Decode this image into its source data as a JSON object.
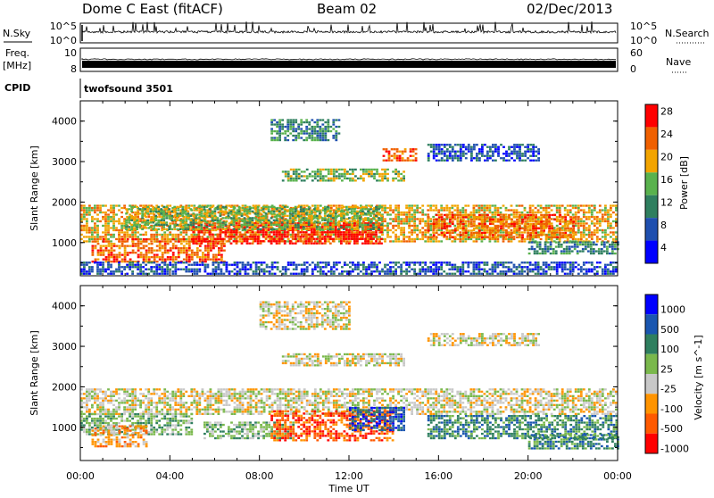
{
  "header": {
    "station": "Dome C East (fitACF)",
    "beam": "Beam 02",
    "date": "02/Dec/2013"
  },
  "strips": {
    "nsky_label": "N.Sky",
    "nsky_ticks": [
      "10^5",
      "10^0"
    ],
    "nsearch_label": "N.Search",
    "nsearch_ticks": [
      "10^5",
      "10^0"
    ],
    "freq_label_line1": "Freq.",
    "freq_label_line2": "[MHz]",
    "freq_ticks": [
      "10",
      "8"
    ],
    "nave_label": "Nave",
    "nave_ticks": [
      "60",
      "0"
    ],
    "cpid_label": "CPID",
    "cpid_value": "twofsound 3501"
  },
  "colors": {
    "power": [
      "#0000ff",
      "#1f4faf",
      "#2f7f5f",
      "#59b24d",
      "#f2a400",
      "#f06000",
      "#ff0000"
    ],
    "velocity": [
      "#ff0000",
      "#ff5a00",
      "#ff9400",
      "#c8c8c8",
      "#7ab84c",
      "#2f7f5f",
      "#1a56b0",
      "#0000ff"
    ]
  },
  "chart_data": [
    {
      "type": "heatmap",
      "name": "power",
      "title": "",
      "xlabel": "",
      "ylabel": "Slant Range [km]",
      "x_range_hours": [
        0,
        24
      ],
      "ylim": [
        180,
        4500
      ],
      "y_ticks": [
        1000,
        2000,
        3000,
        4000
      ],
      "x_tick_labels": [
        "00:00",
        "04:00",
        "08:00",
        "12:00",
        "16:00",
        "20:00",
        "00:00"
      ],
      "colorbar_label": "Power [dB]",
      "colorbar_ticks": [
        "4",
        "8",
        "12",
        "16",
        "20",
        "24",
        "28"
      ],
      "bands": [
        {
          "t": [
            0.0,
            24.0
          ],
          "r": [
            1000,
            1900
          ],
          "level": 4
        },
        {
          "t": [
            0.5,
            6.5
          ],
          "r": [
            500,
            1100
          ],
          "level": 5
        },
        {
          "t": [
            5.0,
            13.5
          ],
          "r": [
            950,
            1500
          ],
          "level": 6
        },
        {
          "t": [
            15.5,
            22.0
          ],
          "r": [
            1100,
            1700
          ],
          "level": 5
        },
        {
          "t": [
            2.0,
            13.5
          ],
          "r": [
            1300,
            1900
          ],
          "level": 3
        },
        {
          "t": [
            0.0,
            24.0
          ],
          "r": [
            200,
            500
          ],
          "level": 1
        },
        {
          "t": [
            9.0,
            14.5
          ],
          "r": [
            2500,
            2800
          ],
          "level": 3
        },
        {
          "t": [
            13.5,
            15.0
          ],
          "r": [
            3000,
            3300
          ],
          "level": 5
        },
        {
          "t": [
            8.5,
            11.5
          ],
          "r": [
            3500,
            4000
          ],
          "level": 2
        },
        {
          "t": [
            15.5,
            20.5
          ],
          "r": [
            3000,
            3400
          ],
          "level": 1
        },
        {
          "t": [
            20.0,
            24.0
          ],
          "r": [
            700,
            1000
          ],
          "level": 2
        }
      ]
    },
    {
      "type": "heatmap",
      "name": "velocity",
      "title": "",
      "xlabel": "Time UT",
      "ylabel": "Slant Range [km]",
      "x_range_hours": [
        0,
        24
      ],
      "ylim": [
        180,
        4500
      ],
      "y_ticks": [
        1000,
        2000,
        3000,
        4000
      ],
      "x_tick_labels": [
        "00:00",
        "04:00",
        "08:00",
        "12:00",
        "16:00",
        "20:00",
        "00:00"
      ],
      "colorbar_label": "Velocity [m s^-1]",
      "colorbar_ticks": [
        "1000",
        "500",
        "100",
        "25",
        "-25",
        "-100",
        "-500",
        "-1000"
      ],
      "bands": [
        {
          "t": [
            0.0,
            24.0
          ],
          "r": [
            1300,
            1950
          ],
          "level": 3
        },
        {
          "t": [
            0.0,
            5.0
          ],
          "r": [
            800,
            1350
          ],
          "level": 4
        },
        {
          "t": [
            0.5,
            3.0
          ],
          "r": [
            500,
            1000
          ],
          "level": 2
        },
        {
          "t": [
            5.5,
            9.5
          ],
          "r": [
            700,
            1100
          ],
          "level": 4
        },
        {
          "t": [
            8.5,
            14.0
          ],
          "r": [
            650,
            1400
          ],
          "level": 1
        },
        {
          "t": [
            12.0,
            14.5
          ],
          "r": [
            900,
            1500
          ],
          "level": 6
        },
        {
          "t": [
            15.5,
            24.0
          ],
          "r": [
            700,
            1300
          ],
          "level": 5
        },
        {
          "t": [
            20.0,
            24.0
          ],
          "r": [
            450,
            800
          ],
          "level": 5
        },
        {
          "t": [
            9.0,
            14.5
          ],
          "r": [
            2500,
            2800
          ],
          "level": 3
        },
        {
          "t": [
            8.0,
            12.0
          ],
          "r": [
            3400,
            4100
          ],
          "level": 3
        },
        {
          "t": [
            15.5,
            20.5
          ],
          "r": [
            3000,
            3300
          ],
          "level": 3
        }
      ]
    }
  ]
}
